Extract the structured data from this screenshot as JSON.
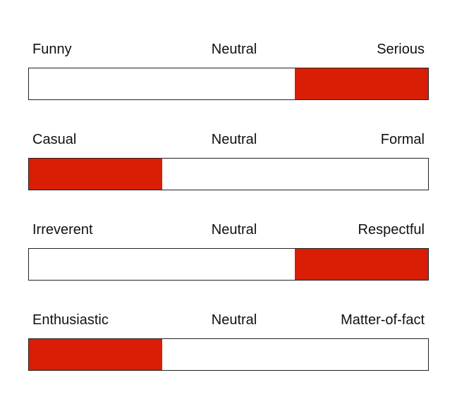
{
  "accent_color": "#d91e05",
  "scales": [
    {
      "left_label": "Funny",
      "middle_label": "Neutral",
      "right_label": "Serious",
      "selected_segment": 2,
      "segment_count": 3
    },
    {
      "left_label": "Casual",
      "middle_label": "Neutral",
      "right_label": "Formal",
      "selected_segment": 0,
      "segment_count": 3
    },
    {
      "left_label": "Irreverent",
      "middle_label": "Neutral",
      "right_label": "Respectful",
      "selected_segment": 2,
      "segment_count": 3
    },
    {
      "left_label": "Enthusiastic",
      "middle_label": "Neutral",
      "right_label": "Matter-of-fact",
      "selected_segment": 0,
      "segment_count": 3
    }
  ]
}
